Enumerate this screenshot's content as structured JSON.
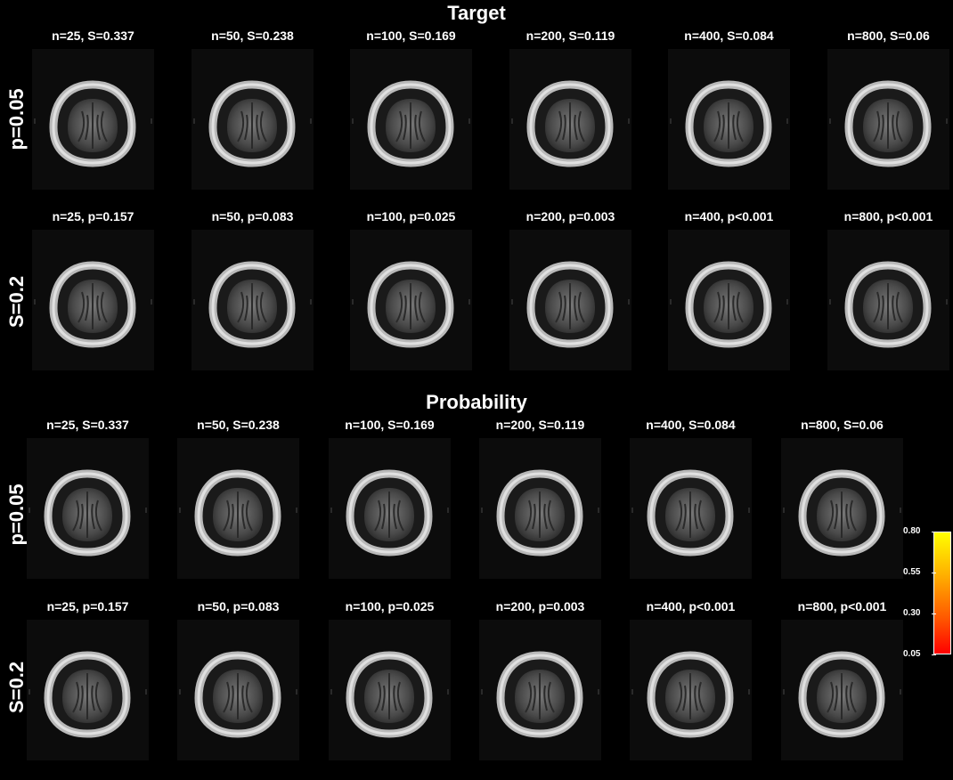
{
  "sections": [
    {
      "title": "Target",
      "rows": [
        {
          "label": "p=0.05",
          "panels": [
            "n=25, S=0.337",
            "n=50, S=0.238",
            "n=100, S=0.169",
            "n=200, S=0.119",
            "n=400, S=0.084",
            "n=800, S=0.06"
          ]
        },
        {
          "label": "S=0.2",
          "panels": [
            "n=25, p=0.157",
            "n=50, p=0.083",
            "n=100, p=0.025",
            "n=200, p=0.003",
            "n=400, p<0.001",
            "n=800, p<0.001"
          ]
        }
      ]
    },
    {
      "title": "Probability",
      "rows": [
        {
          "label": "p=0.05",
          "panels": [
            "n=25, S=0.337",
            "n=50, S=0.238",
            "n=100, S=0.169",
            "n=200, S=0.119",
            "n=400, S=0.084",
            "n=800, S=0.06"
          ]
        },
        {
          "label": "S=0.2",
          "panels": [
            "n=25, p=0.157",
            "n=50, p=0.083",
            "n=100, p=0.025",
            "n=200, p=0.003",
            "n=400, p<0.001",
            "n=800, p<0.001"
          ]
        }
      ]
    }
  ],
  "colorbar": {
    "ticks": [
      "0.80",
      "0.55",
      "0.30",
      "0.05"
    ],
    "colors": {
      "low": "#ff0000",
      "mid": "#ffb000",
      "high": "#ffff00"
    }
  }
}
